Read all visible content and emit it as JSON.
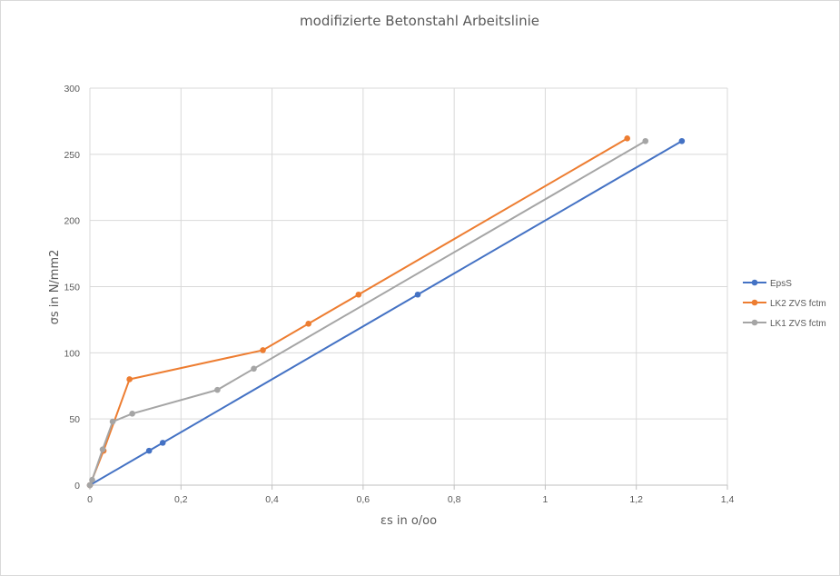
{
  "chart_data": {
    "type": "line",
    "title": "modifizierte Betonstahl Arbeitslinie",
    "xlabel": "εs in o/oo",
    "ylabel": "σs in N/mm2",
    "xlim": [
      0,
      1.4
    ],
    "ylim": [
      0,
      300
    ],
    "x_ticks": [
      0,
      0.2,
      0.4,
      0.6,
      0.8,
      1,
      1.2,
      1.4
    ],
    "x_tick_labels": [
      "0",
      "0,2",
      "0,4",
      "0,6",
      "0,8",
      "1",
      "1,2",
      "1,4"
    ],
    "y_ticks": [
      0,
      50,
      100,
      150,
      200,
      250,
      300
    ],
    "y_tick_labels": [
      "0",
      "50",
      "100",
      "150",
      "200",
      "250",
      "300"
    ],
    "grid": true,
    "legend_position": "right",
    "series": [
      {
        "name": "EpsS",
        "color": "#4472C4",
        "points": [
          [
            0,
            0
          ],
          [
            0.13,
            26
          ],
          [
            0.16,
            32
          ],
          [
            0.72,
            144
          ],
          [
            1.3,
            260
          ]
        ]
      },
      {
        "name": "LK2 ZVS fctm",
        "color": "#ED7D31",
        "points": [
          [
            0,
            0
          ],
          [
            0.03,
            26
          ],
          [
            0.087,
            80
          ],
          [
            0.38,
            102
          ],
          [
            0.48,
            122
          ],
          [
            0.59,
            144
          ],
          [
            1.18,
            262
          ]
        ]
      },
      {
        "name": "LK1 ZVS fctm",
        "color": "#A5A5A5",
        "points": [
          [
            0,
            0
          ],
          [
            0.005,
            4
          ],
          [
            0.028,
            27
          ],
          [
            0.05,
            48
          ],
          [
            0.093,
            54
          ],
          [
            0.28,
            72
          ],
          [
            0.36,
            88
          ],
          [
            1.22,
            260
          ]
        ]
      }
    ]
  }
}
